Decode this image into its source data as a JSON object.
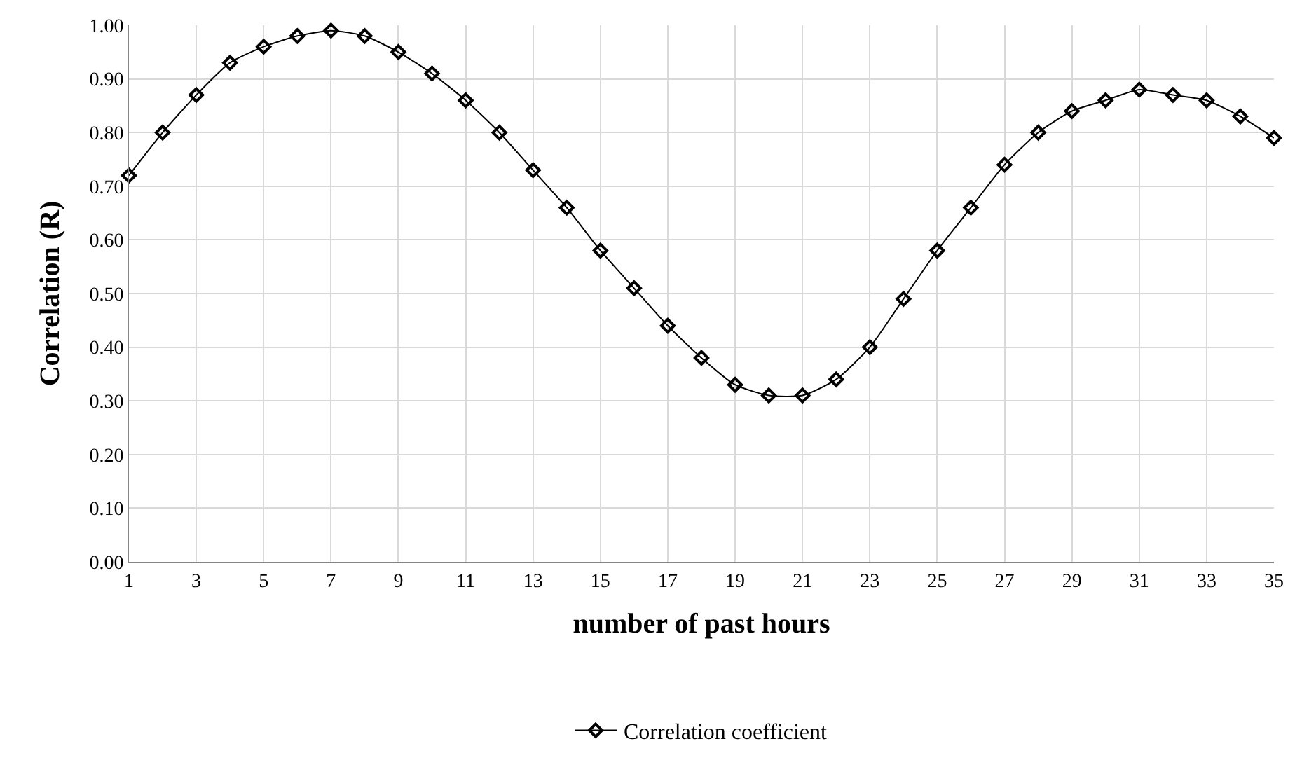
{
  "chart_data": {
    "type": "line",
    "xlabel": "number of past hours",
    "ylabel": "Correlation (R)",
    "x": [
      1,
      2,
      3,
      4,
      5,
      6,
      7,
      8,
      9,
      10,
      11,
      12,
      13,
      14,
      15,
      16,
      17,
      18,
      19,
      20,
      21,
      22,
      23,
      24,
      25,
      26,
      27,
      28,
      29,
      30,
      31,
      32,
      33,
      34,
      35
    ],
    "series": [
      {
        "name": "Correlation coefficient",
        "color": "#000000",
        "values": [
          0.72,
          0.8,
          0.87,
          0.93,
          0.96,
          0.98,
          0.99,
          0.98,
          0.95,
          0.91,
          0.86,
          0.8,
          0.73,
          0.66,
          0.58,
          0.51,
          0.44,
          0.38,
          0.33,
          0.31,
          0.31,
          0.34,
          0.4,
          0.49,
          0.58,
          0.66,
          0.74,
          0.8,
          0.84,
          0.86,
          0.88,
          0.87,
          0.86,
          0.83,
          0.79
        ]
      }
    ],
    "xlim": [
      1,
      35
    ],
    "xticks": [
      1,
      3,
      5,
      7,
      9,
      11,
      13,
      15,
      17,
      19,
      21,
      23,
      25,
      27,
      29,
      31,
      33,
      35
    ],
    "ylim": [
      0,
      1
    ],
    "yticks": [
      {
        "value": 0,
        "label": "0.00"
      },
      {
        "value": 0.1,
        "label": "0.10"
      },
      {
        "value": 0.2,
        "label": "0.20"
      },
      {
        "value": 0.3,
        "label": "0.30"
      },
      {
        "value": 0.4,
        "label": "0.40"
      },
      {
        "value": 0.5,
        "label": "0.50"
      },
      {
        "value": 0.6,
        "label": "0.60"
      },
      {
        "value": 0.7,
        "label": "0.70"
      },
      {
        "value": 0.8,
        "label": "0.80"
      },
      {
        "value": 0.9,
        "label": "0.90"
      },
      {
        "value": 1,
        "label": "1.00"
      }
    ],
    "grid": true,
    "legend": "bottom",
    "marker": "diamond",
    "line_style": "solid"
  }
}
